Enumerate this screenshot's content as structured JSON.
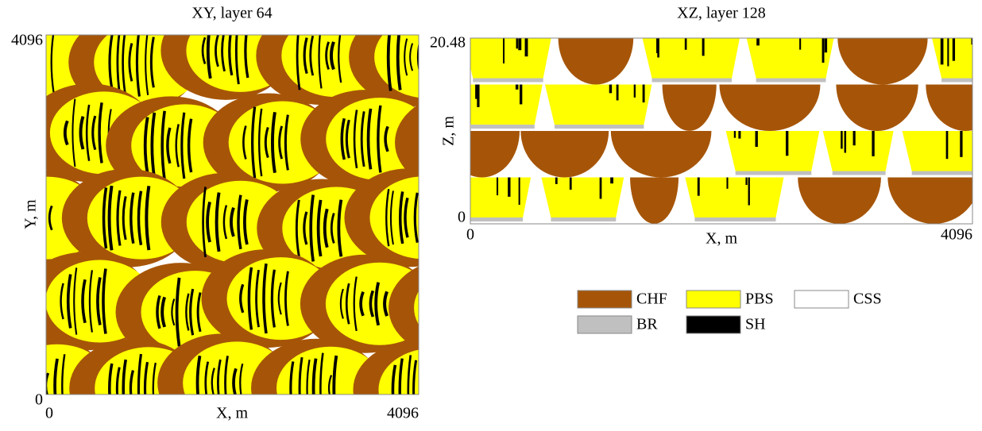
{
  "panels": [
    {
      "title": "XY, layer 64",
      "xlabel": "X, m",
      "ylabel": "Y, m",
      "xticks": [
        "0",
        "4096"
      ],
      "yticks": [
        "0",
        "4096"
      ]
    },
    {
      "title": "XZ, layer 128",
      "xlabel": "X, m",
      "ylabel": "Z, m",
      "xticks": [
        "0",
        "4096"
      ],
      "yticks": [
        "0",
        "20.48"
      ]
    }
  ],
  "legend": [
    {
      "name": "CHF",
      "color": "#a65508"
    },
    {
      "name": "PBS",
      "color": "#ffff00"
    },
    {
      "name": "CSS",
      "color": "#ffffff"
    },
    {
      "name": "BR",
      "color": "#c0c0c0"
    },
    {
      "name": "SH",
      "color": "#000000"
    }
  ]
}
